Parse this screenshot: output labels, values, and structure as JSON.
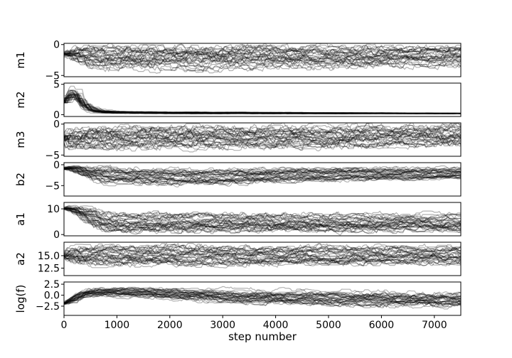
{
  "chart_data": {
    "type": "line",
    "title": "",
    "xlabel": "step number",
    "xlim": [
      0,
      7500
    ],
    "xticks": [
      0,
      1000,
      2000,
      3000,
      4000,
      5000,
      6000,
      7000
    ],
    "xtick_labels": [
      "0",
      "1000",
      "2000",
      "3000",
      "4000",
      "5000",
      "6000",
      "7000"
    ],
    "line_color": "#000000",
    "line_opacity": 0.3,
    "walkers_per_panel": 32,
    "panels": [
      {
        "ylabel": "m1",
        "ylim": [
          -5.2,
          0.2
        ],
        "yticks": [
          0,
          -5
        ],
        "ytick_labels": [
          "0",
          "−5"
        ],
        "burn_in_value": -1.5,
        "band_center": [
          [
            0,
            -1.5
          ],
          [
            400,
            -2.0
          ],
          [
            2000,
            -2.2
          ],
          [
            4000,
            -2.0
          ],
          [
            6000,
            -2.0
          ],
          [
            7500,
            -1.8
          ]
        ],
        "band_spread": [
          [
            0,
            1.0
          ],
          [
            400,
            1.8
          ],
          [
            7500,
            1.5
          ]
        ],
        "median_trace": [
          [
            0,
            -1.0
          ],
          [
            400,
            -1.2
          ],
          [
            7500,
            -0.9
          ]
        ]
      },
      {
        "ylabel": "m2",
        "ylim": [
          -0.3,
          5.2
        ],
        "yticks": [
          0,
          5
        ],
        "ytick_labels": [
          "0",
          "5"
        ],
        "burn_in_value": 2.0,
        "band_center": [
          [
            0,
            3.5
          ],
          [
            100,
            4.5
          ],
          [
            200,
            3.0
          ],
          [
            300,
            0.8
          ],
          [
            500,
            0.4
          ],
          [
            2000,
            0.3
          ],
          [
            7500,
            0.2
          ]
        ],
        "band_spread": [
          [
            0,
            1.2
          ],
          [
            300,
            0.5
          ],
          [
            600,
            0.15
          ],
          [
            7500,
            0.05
          ]
        ],
        "median_trace": [
          [
            0,
            3.0
          ],
          [
            150,
            4.4
          ],
          [
            300,
            0.6
          ],
          [
            600,
            0.3
          ],
          [
            7500,
            0.2
          ]
        ]
      },
      {
        "ylabel": "m3",
        "ylim": [
          -5.2,
          0.2
        ],
        "yticks": [
          0,
          -5
        ],
        "ytick_labels": [
          "0",
          "−5"
        ],
        "burn_in_value": -2.0,
        "band_center": [
          [
            0,
            -2.5
          ],
          [
            400,
            -2.2
          ],
          [
            7500,
            -2.0
          ]
        ],
        "band_spread": [
          [
            0,
            2.0
          ],
          [
            400,
            1.8
          ],
          [
            7500,
            1.6
          ]
        ],
        "median_trace": [
          [
            0,
            -1.0
          ],
          [
            400,
            -0.6
          ],
          [
            7500,
            -0.3
          ]
        ]
      },
      {
        "ylabel": "b2",
        "ylim": [
          -7.5,
          0.5
        ],
        "yticks": [
          0,
          -5
        ],
        "ytick_labels": [
          "0",
          "−5"
        ],
        "burn_in_value": -1.0,
        "band_center": [
          [
            0,
            -0.5
          ],
          [
            500,
            -2.5
          ],
          [
            2500,
            -3.0
          ],
          [
            4000,
            -2.5
          ],
          [
            7500,
            -2.0
          ]
        ],
        "band_spread": [
          [
            0,
            0.5
          ],
          [
            600,
            1.8
          ],
          [
            7500,
            1.2
          ]
        ],
        "median_trace": [
          [
            0,
            -0.5
          ],
          [
            600,
            -1.5
          ],
          [
            7500,
            -1.5
          ]
        ]
      },
      {
        "ylabel": "a1",
        "ylim": [
          -0.5,
          12.5
        ],
        "yticks": [
          10,
          0
        ],
        "ytick_labels": [
          "10",
          "0"
        ],
        "burn_in_value": 10.0,
        "band_center": [
          [
            0,
            10.5
          ],
          [
            300,
            8.0
          ],
          [
            600,
            4.5
          ],
          [
            7500,
            4.5
          ]
        ],
        "band_spread": [
          [
            0,
            1.0
          ],
          [
            500,
            3.5
          ],
          [
            7500,
            3.0
          ]
        ],
        "median_trace": [
          [
            0,
            10.5
          ],
          [
            500,
            7.0
          ],
          [
            7500,
            7.2
          ]
        ]
      },
      {
        "ylabel": "a2",
        "ylim": [
          11.0,
          17.7
        ],
        "yticks": [
          15.0,
          12.5
        ],
        "ytick_labels": [
          "15.0",
          "12.5"
        ],
        "burn_in_value": 15.0,
        "band_center": [
          [
            0,
            15.0
          ],
          [
            400,
            15.0
          ],
          [
            7500,
            15.0
          ]
        ],
        "band_spread": [
          [
            0,
            1.5
          ],
          [
            400,
            1.8
          ],
          [
            7500,
            1.6
          ]
        ],
        "median_trace": [
          [
            0,
            15.0
          ],
          [
            400,
            16.5
          ],
          [
            7500,
            16.8
          ]
        ]
      },
      {
        "ylabel": "log(f)",
        "ylim": [
          -4.6,
          3.0
        ],
        "yticks": [
          2.5,
          0.0,
          -2.5
        ],
        "ytick_labels": [
          "2.5",
          "0.0",
          "−2.5"
        ],
        "burn_in_value": -2.0,
        "band_center": [
          [
            0,
            -1.5
          ],
          [
            300,
            0.7
          ],
          [
            1500,
            0.5
          ],
          [
            3000,
            -0.5
          ],
          [
            5000,
            -1.0
          ],
          [
            7500,
            -1.3
          ]
        ],
        "band_spread": [
          [
            0,
            0.6
          ],
          [
            300,
            0.9
          ],
          [
            3000,
            1.3
          ],
          [
            7500,
            1.5
          ]
        ],
        "median_trace": [
          [
            0,
            -1.5
          ],
          [
            300,
            0.8
          ],
          [
            7500,
            -0.8
          ]
        ]
      }
    ]
  }
}
